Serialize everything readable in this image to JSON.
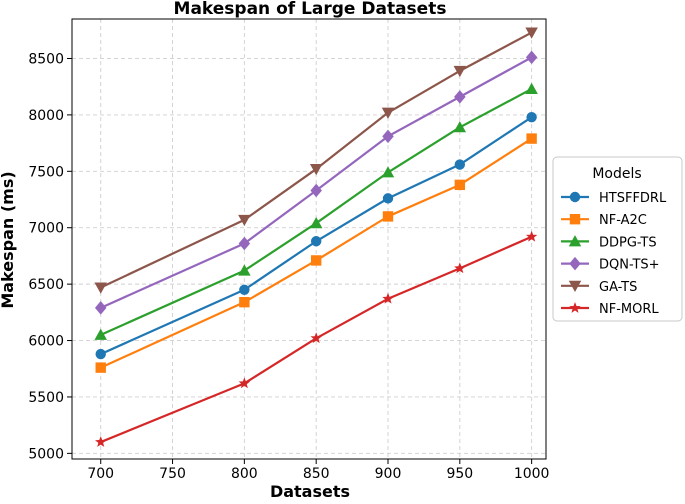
{
  "chart_data": {
    "type": "line",
    "title": "Makespan of Large Datasets",
    "xlabel": "Datasets",
    "ylabel": "Makespan (ms)",
    "x": [
      700,
      800,
      850,
      900,
      950,
      1000
    ],
    "x_ticks": [
      700,
      750,
      800,
      850,
      900,
      950,
      1000
    ],
    "y_ticks": [
      5000,
      5500,
      6000,
      6500,
      7000,
      7500,
      8000,
      8500
    ],
    "xlim": [
      680,
      1010
    ],
    "ylim": [
      4950,
      8850
    ],
    "grid": true,
    "legend": {
      "title": "Models",
      "placement": "center-right, outside plot"
    },
    "series": [
      {
        "name": "HTSFFDRL",
        "color": "#1f77b4",
        "marker": "circle",
        "values": [
          5880,
          6450,
          6880,
          7260,
          7560,
          7980
        ]
      },
      {
        "name": "NF-A2C",
        "color": "#ff7f0e",
        "marker": "square",
        "values": [
          5760,
          6340,
          6710,
          7100,
          7380,
          7790
        ]
      },
      {
        "name": "DDPG-TS",
        "color": "#2ca02c",
        "marker": "triangle-up",
        "values": [
          6050,
          6620,
          7040,
          7490,
          7890,
          8230
        ]
      },
      {
        "name": "DQN-TS+",
        "color": "#9467bd",
        "marker": "diamond",
        "values": [
          6290,
          6860,
          7330,
          7810,
          8160,
          8510
        ]
      },
      {
        "name": "GA-TS",
        "color": "#8c564b",
        "marker": "triangle-down",
        "values": [
          6470,
          7070,
          7520,
          8020,
          8390,
          8730
        ]
      },
      {
        "name": "NF-MORL",
        "color": "#d62728",
        "marker": "star",
        "values": [
          5100,
          5620,
          6020,
          6370,
          6640,
          6920
        ]
      }
    ]
  }
}
